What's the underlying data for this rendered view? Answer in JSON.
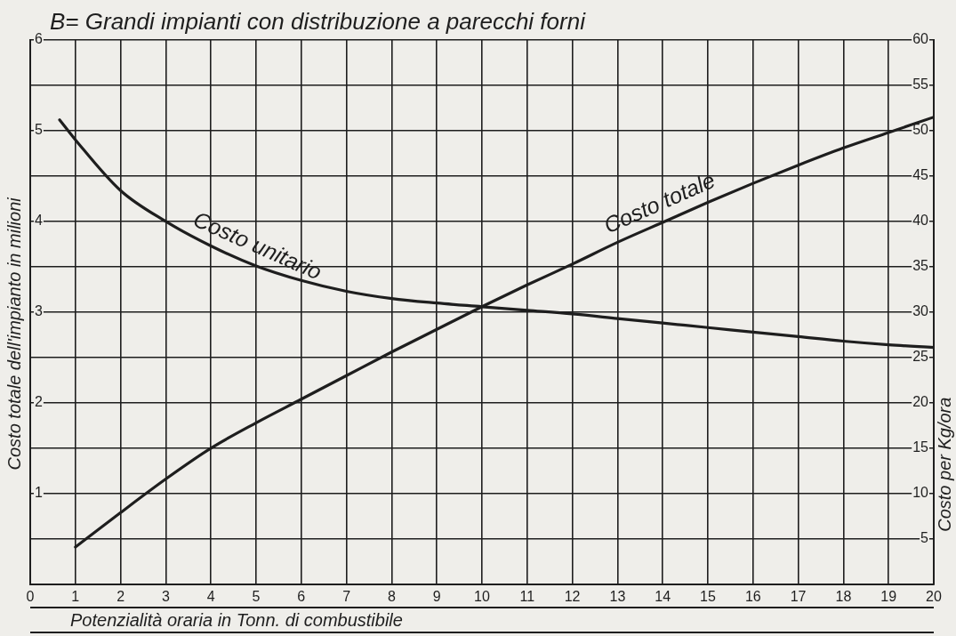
{
  "chart_data": {
    "type": "line",
    "title": "B= Grandi impianti con distribuzione a parecchi forni",
    "xlabel": "Potenzialità oraria in Tonn. di combustibile",
    "ylabel": "Costo totale dell'impianto in milioni",
    "y2label": "Costo per Kg/ora",
    "xlim": [
      0,
      20
    ],
    "xticks": [
      0,
      1,
      2,
      3,
      4,
      5,
      6,
      7,
      8,
      9,
      10,
      11,
      12,
      13,
      14,
      15,
      16,
      17,
      18,
      19,
      20
    ],
    "ylim": [
      0,
      6
    ],
    "yticks": [
      {
        "value": 0,
        "label": null
      },
      {
        "value": 0.5,
        "label": null
      },
      1,
      {
        "value": 1.5,
        "label": null
      },
      2,
      {
        "value": 2.5,
        "label": null
      },
      3,
      {
        "value": 3.5,
        "label": null
      },
      4,
      {
        "value": 4.5,
        "label": null
      },
      5,
      {
        "value": 5.5,
        "label": null
      },
      6
    ],
    "y2lim": [
      0,
      60
    ],
    "y2ticks": [
      5,
      10,
      15,
      20,
      25,
      30,
      35,
      40,
      45,
      50,
      55,
      60
    ],
    "grid": true,
    "line_style": "solid",
    "series": [
      {
        "name": "Costo totale",
        "color": "#1e1e1e",
        "x": [
          1,
          2,
          3,
          4,
          5,
          6,
          7,
          8,
          9,
          10,
          11,
          12,
          13,
          14,
          15,
          16,
          17,
          18,
          19,
          20
        ],
        "values": [
          0.41,
          0.79,
          1.16,
          1.5,
          1.78,
          2.04,
          2.3,
          2.56,
          2.81,
          3.06,
          3.3,
          3.53,
          3.77,
          3.99,
          4.21,
          4.42,
          4.62,
          4.81,
          4.98,
          5.15
        ]
      },
      {
        "name": "Costo unitario",
        "color": "#1e1e1e",
        "axis": "y2",
        "x": [
          0.65,
          1,
          2,
          3,
          4,
          5,
          6,
          7,
          8,
          9,
          10,
          11,
          12,
          13,
          14,
          15,
          16,
          17,
          18,
          19,
          20
        ],
        "values": [
          51.2,
          49,
          43.4,
          40,
          37.3,
          35.1,
          33.5,
          32.3,
          31.5,
          31,
          30.6,
          30.2,
          29.8,
          29.3,
          28.8,
          28.3,
          27.8,
          27.3,
          26.8,
          26.4,
          26.1
        ]
      }
    ]
  }
}
